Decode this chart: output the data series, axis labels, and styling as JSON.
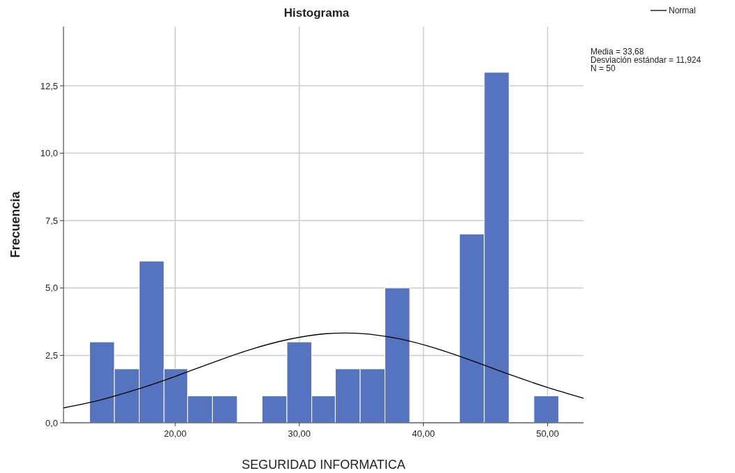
{
  "chart_data": {
    "type": "histogram",
    "title": "Histograma",
    "xlabel": "SEGURIDAD INFORMATICA",
    "ylabel": "Frecuencia",
    "bins": [
      13.1,
      15.1,
      17.1,
      19.1,
      21.0,
      23.0,
      25.0,
      27.0,
      29.0,
      31.0,
      32.9,
      34.9,
      36.9,
      38.9,
      42.9,
      44.9,
      46.9,
      48.9,
      50.9
    ],
    "values": [
      3,
      2,
      6,
      2,
      1,
      1,
      0,
      1,
      3,
      1,
      2,
      2,
      5,
      0,
      7,
      13,
      0,
      1
    ],
    "color": "#5573be",
    "series": [
      {
        "type": "line",
        "name": "Normal",
        "color": "#000000",
        "x": [
          11,
          14,
          17,
          20,
          23,
          26,
          29,
          32,
          33.7,
          35,
          38,
          41,
          44,
          47,
          50,
          52.9
        ],
        "values": [
          0.55,
          0.85,
          1.25,
          1.72,
          2.23,
          2.71,
          3.08,
          3.3,
          3.33,
          3.31,
          3.12,
          2.76,
          2.29,
          1.78,
          1.31,
          0.91
        ]
      }
    ],
    "xlim": [
      11,
      52.9
    ],
    "ylim": [
      0,
      14.7
    ],
    "xticks": [
      {
        "value": 20,
        "label": "20,00"
      },
      {
        "value": 30,
        "label": "30,00"
      },
      {
        "value": 40,
        "label": "40,00"
      },
      {
        "value": 50,
        "label": "50,00"
      }
    ],
    "yticks": [
      {
        "value": 0,
        "label": "0,0"
      },
      {
        "value": 2.5,
        "label": "2,5"
      },
      {
        "value": 5,
        "label": "5,0"
      },
      {
        "value": 7.5,
        "label": "7,5"
      },
      {
        "value": 10,
        "label": "10,0"
      },
      {
        "value": 12.5,
        "label": "12,5"
      }
    ],
    "grid": true,
    "legend": "top right",
    "annotations": [
      "Media = 33,68",
      "Desviación estándar = 11,924",
      "N = 50"
    ]
  }
}
